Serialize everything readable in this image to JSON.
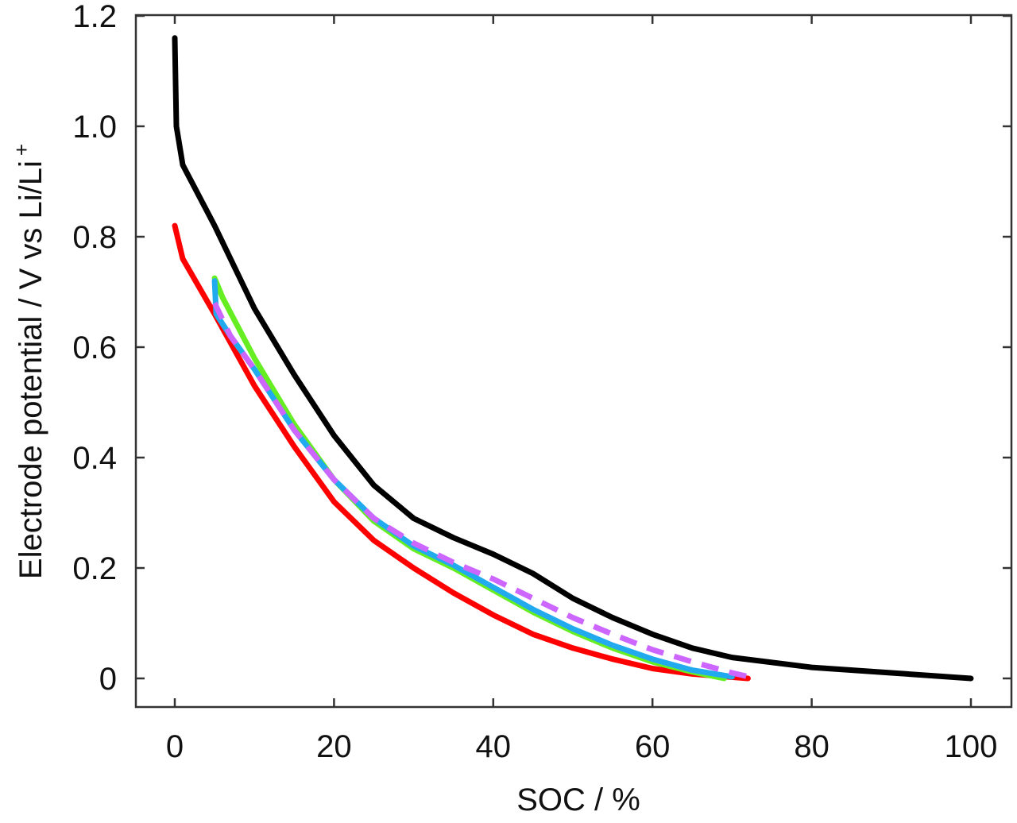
{
  "chart_data": {
    "type": "line",
    "title": "",
    "xlabel": "SOC / %",
    "ylabel": "Electrode potential / V vs Li/Li",
    "ylabel_superscript": "+",
    "xlim": [
      -5,
      105
    ],
    "ylim": [
      -0.05,
      1.2
    ],
    "xticks": [
      0,
      20,
      40,
      60,
      80,
      100
    ],
    "xtick_labels": [
      "0",
      "20",
      "40",
      "60",
      "80",
      "100"
    ],
    "yticks": [
      0,
      0.2,
      0.4,
      0.6,
      0.8,
      1.0,
      1.2
    ],
    "ytick_labels": [
      "0",
      "0.2",
      "0.4",
      "0.6",
      "0.8",
      "1.0",
      "1.2"
    ],
    "grid": false,
    "legend": null,
    "series": [
      {
        "name": "black",
        "color": "#000000",
        "dashed": false,
        "x": [
          0,
          0.2,
          1,
          5,
          10,
          15,
          20,
          25,
          30,
          35,
          40,
          45,
          50,
          55,
          60,
          65,
          70,
          80,
          90,
          100
        ],
        "y": [
          1.16,
          1.0,
          0.93,
          0.82,
          0.67,
          0.55,
          0.44,
          0.35,
          0.29,
          0.255,
          0.225,
          0.19,
          0.145,
          0.11,
          0.08,
          0.055,
          0.038,
          0.02,
          0.01,
          0.0
        ]
      },
      {
        "name": "red",
        "color": "#ff0000",
        "dashed": false,
        "x": [
          0,
          1,
          5,
          10,
          15,
          20,
          25,
          30,
          35,
          40,
          45,
          50,
          55,
          60,
          65,
          72
        ],
        "y": [
          0.82,
          0.76,
          0.66,
          0.53,
          0.42,
          0.32,
          0.25,
          0.2,
          0.155,
          0.115,
          0.08,
          0.055,
          0.035,
          0.018,
          0.008,
          0.0
        ]
      },
      {
        "name": "green",
        "color": "#66ee22",
        "dashed": false,
        "x": [
          5,
          6,
          10,
          15,
          20,
          25,
          30,
          35,
          40,
          45,
          50,
          55,
          60,
          65,
          69
        ],
        "y": [
          0.725,
          0.69,
          0.58,
          0.46,
          0.36,
          0.285,
          0.235,
          0.2,
          0.16,
          0.12,
          0.085,
          0.055,
          0.03,
          0.012,
          0.0
        ]
      },
      {
        "name": "blue",
        "color": "#22aaee",
        "dashed": false,
        "x": [
          5,
          5.2,
          7,
          10,
          15,
          20,
          25,
          30,
          35,
          40,
          45,
          50,
          55,
          60,
          65,
          70
        ],
        "y": [
          0.72,
          0.66,
          0.62,
          0.56,
          0.45,
          0.36,
          0.29,
          0.24,
          0.205,
          0.165,
          0.125,
          0.09,
          0.06,
          0.035,
          0.015,
          0.003
        ]
      },
      {
        "name": "purple-dashed",
        "color": "#cc66ff",
        "dashed": true,
        "x": [
          5,
          7,
          10,
          15,
          20,
          25,
          30,
          35,
          40,
          45,
          50,
          55,
          60,
          65,
          70,
          73
        ],
        "y": [
          0.68,
          0.62,
          0.56,
          0.45,
          0.36,
          0.29,
          0.245,
          0.21,
          0.18,
          0.145,
          0.11,
          0.08,
          0.052,
          0.03,
          0.01,
          0.0
        ]
      }
    ]
  }
}
